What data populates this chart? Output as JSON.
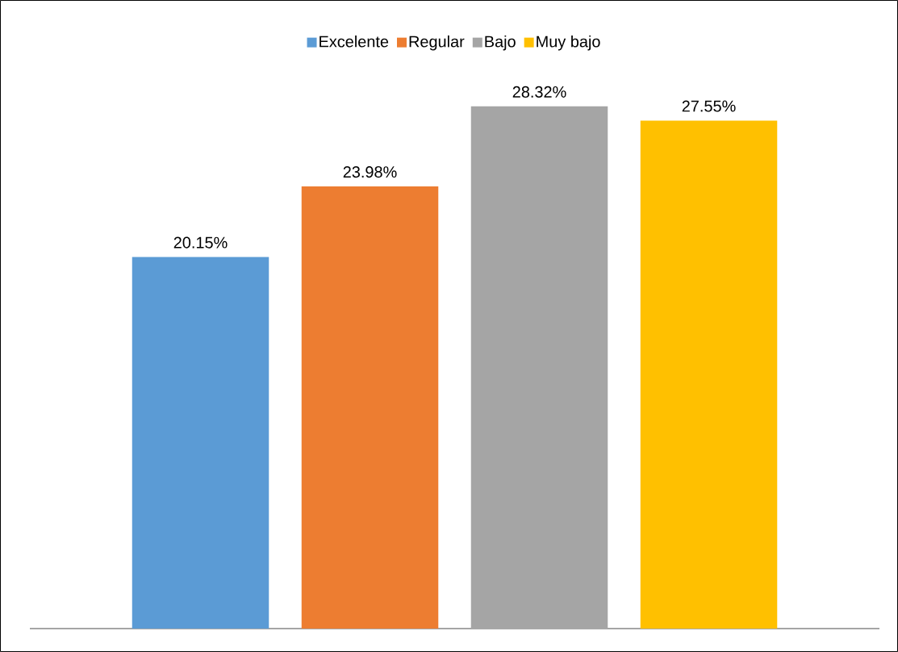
{
  "chart_data": {
    "type": "bar",
    "categories": [
      null
    ],
    "series": [
      {
        "name": "Excelente",
        "color": "#5b9bd5",
        "values": [
          20.15
        ],
        "value_labels": [
          "20.15%"
        ]
      },
      {
        "name": "Regular",
        "color": "#ed7d31",
        "values": [
          23.98
        ],
        "value_labels": [
          "23.98%"
        ]
      },
      {
        "name": "Bajo",
        "color": "#a5a5a5",
        "values": [
          28.32
        ],
        "value_labels": [
          "28.32%"
        ]
      },
      {
        "name": "Muy bajo",
        "color": "#ffc000",
        "values": [
          27.55
        ],
        "value_labels": [
          "27.55%"
        ]
      }
    ],
    "legend": "top"
  }
}
